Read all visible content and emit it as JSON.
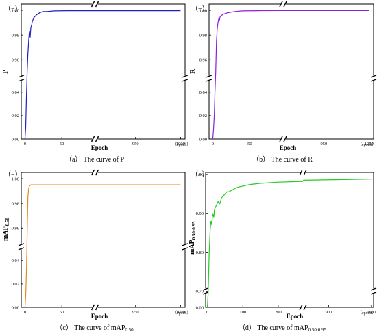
{
  "chart_data": [
    {
      "type": "line",
      "panel_tag": "（−）",
      "ylabel": "P",
      "xlabel": "Epoch",
      "x_unit_note": "（epoch）",
      "caption": "（a） The curve of P",
      "color": "#1f1fbf",
      "x_segments": [
        {
          "range": [
            -5,
            95
          ],
          "ticks": [
            0,
            50
          ]
        },
        {
          "range": [
            905,
            1005
          ],
          "ticks": [
            950,
            1000
          ]
        }
      ],
      "y_segments": [
        {
          "range": [
            0,
            0.052
          ],
          "ticks": [
            0.0,
            0.02,
            0.04
          ]
        },
        {
          "range": [
            0.945,
            1.005
          ],
          "ticks": [
            0.96,
            0.98,
            1.0
          ]
        }
      ],
      "points": [
        [
          0,
          0
        ],
        [
          1,
          0.01
        ],
        [
          2,
          0.035
        ],
        [
          3,
          0.95
        ],
        [
          4,
          0.965
        ],
        [
          5,
          0.975
        ],
        [
          6,
          0.983
        ],
        [
          7,
          0.978
        ],
        [
          8,
          0.986
        ],
        [
          9,
          0.988
        ],
        [
          10,
          0.991
        ],
        [
          12,
          0.994
        ],
        [
          15,
          0.996
        ],
        [
          20,
          0.998
        ],
        [
          25,
          0.999
        ],
        [
          30,
          0.999
        ],
        [
          40,
          0.9995
        ],
        [
          60,
          0.9997
        ],
        [
          95,
          0.9997
        ],
        [
          905,
          0.9997
        ],
        [
          1000,
          0.9997
        ]
      ]
    },
    {
      "type": "line",
      "panel_tag": "（−）",
      "ylabel": "R",
      "xlabel": "Epoch",
      "x_unit_note": "（epoch）",
      "caption": "（b） The curve of R",
      "color": "#8c1fd9",
      "x_segments": [
        {
          "range": [
            -5,
            95
          ],
          "ticks": [
            0,
            50
          ]
        },
        {
          "range": [
            905,
            1005
          ],
          "ticks": [
            950,
            1000
          ]
        }
      ],
      "y_segments": [
        {
          "range": [
            0,
            0.052
          ],
          "ticks": [
            0.0,
            0.02,
            0.04
          ]
        },
        {
          "range": [
            0.945,
            1.005
          ],
          "ticks": [
            0.96,
            0.98,
            1.0
          ]
        }
      ],
      "points": [
        [
          0,
          0
        ],
        [
          1,
          0.008
        ],
        [
          2,
          0.02
        ],
        [
          3,
          0.04
        ],
        [
          4,
          0.95
        ],
        [
          5,
          0.975
        ],
        [
          6,
          0.985
        ],
        [
          7,
          0.99
        ],
        [
          8,
          0.993
        ],
        [
          9,
          0.992
        ],
        [
          10,
          0.995
        ],
        [
          12,
          0.996
        ],
        [
          15,
          0.997
        ],
        [
          20,
          0.998
        ],
        [
          30,
          0.999
        ],
        [
          40,
          0.9995
        ],
        [
          60,
          0.9997
        ],
        [
          95,
          0.9998
        ],
        [
          905,
          0.9998
        ],
        [
          1000,
          0.9998
        ]
      ]
    },
    {
      "type": "line",
      "panel_tag": "（−）",
      "ylabel": "mAP",
      "ylabel_sub": "0.50",
      "xlabel": "Epoch",
      "x_unit_note": "（epoch）",
      "caption": "（c） The curve of mAP",
      "caption_sub": "0.50",
      "color": "#e08a1e",
      "x_segments": [
        {
          "range": [
            -5,
            95
          ],
          "ticks": [
            0,
            50
          ]
        },
        {
          "range": [
            905,
            1005
          ],
          "ticks": [
            950,
            1000
          ]
        }
      ],
      "y_segments": [
        {
          "range": [
            0,
            0.052
          ],
          "ticks": [
            0.0,
            0.02,
            0.04
          ]
        },
        {
          "range": [
            0.945,
            1.005
          ],
          "ticks": [
            0.96,
            0.98,
            1.0
          ]
        }
      ],
      "points": [
        [
          0,
          0
        ],
        [
          1,
          0.01
        ],
        [
          2,
          0.03
        ],
        [
          3,
          0.955
        ],
        [
          4,
          0.985
        ],
        [
          5,
          0.992
        ],
        [
          6,
          0.994
        ],
        [
          8,
          0.995
        ],
        [
          10,
          0.995
        ],
        [
          20,
          0.995
        ],
        [
          50,
          0.995
        ],
        [
          95,
          0.995
        ],
        [
          905,
          0.995
        ],
        [
          1000,
          0.995
        ]
      ]
    },
    {
      "type": "line",
      "panel_tag": "（−）",
      "ylabel": "mAP",
      "ylabel_sub": "0.50:0.95",
      "xlabel": "Epoch",
      "x_unit_note": "（epoch）",
      "caption": "（d） The curve of mAP",
      "caption_sub": "0.50:0.95",
      "color": "#22cc22",
      "x_segments": [
        {
          "range": [
            -5,
            270
          ],
          "ticks": [
            0,
            100,
            200
          ]
        },
        {
          "range": [
            840,
            1005
          ],
          "ticks": [
            900,
            1000
          ]
        }
      ],
      "y_segments": [
        {
          "range": [
            0,
            0.05
          ],
          "ticks": [
            0.0
          ]
        },
        {
          "range": [
            0.7,
            1.005
          ],
          "ticks": [
            0.7,
            0.8,
            0.9,
            1.0
          ]
        }
      ],
      "points": [
        [
          0,
          0
        ],
        [
          1,
          0.02
        ],
        [
          2,
          0.04
        ],
        [
          3,
          0.72
        ],
        [
          5,
          0.8
        ],
        [
          8,
          0.86
        ],
        [
          10,
          0.88
        ],
        [
          12,
          0.87
        ],
        [
          15,
          0.9
        ],
        [
          18,
          0.89
        ],
        [
          20,
          0.91
        ],
        [
          25,
          0.92
        ],
        [
          30,
          0.93
        ],
        [
          35,
          0.925
        ],
        [
          40,
          0.94
        ],
        [
          45,
          0.945
        ],
        [
          50,
          0.95
        ],
        [
          55,
          0.955
        ],
        [
          60,
          0.955
        ],
        [
          70,
          0.96
        ],
        [
          80,
          0.965
        ],
        [
          90,
          0.968
        ],
        [
          100,
          0.97
        ],
        [
          120,
          0.974
        ],
        [
          150,
          0.977
        ],
        [
          200,
          0.98
        ],
        [
          270,
          0.982
        ],
        [
          840,
          0.985
        ],
        [
          1000,
          0.988
        ]
      ]
    }
  ]
}
